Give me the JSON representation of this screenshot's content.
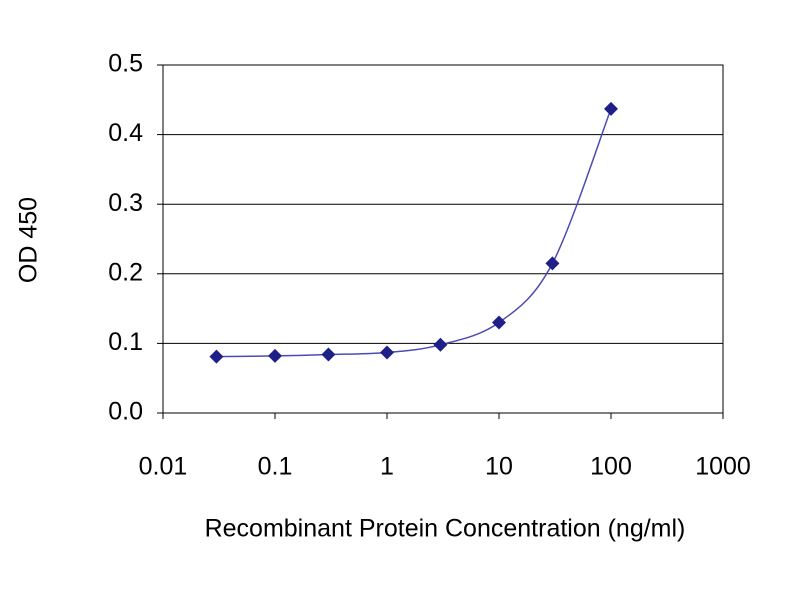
{
  "chart_data": {
    "type": "scatter",
    "x_label": "Recombinant Protein Concentration (ng/ml)",
    "y_label": "OD 450",
    "x_scale": "log",
    "series": [
      {
        "color": "#1f1f8a",
        "x": [
          0.03,
          0.1,
          0.3,
          1,
          3,
          10,
          30,
          100
        ],
        "values": [
          0.081,
          0.082,
          0.084,
          0.087,
          0.098,
          0.13,
          0.215,
          0.437
        ]
      }
    ],
    "xlim": [
      0.01,
      1000
    ],
    "xticks": [
      0.01,
      0.1,
      1,
      10,
      100,
      1000
    ],
    "ylim": [
      0,
      0.5
    ],
    "yticks": [
      {
        "value": 0,
        "label": "0.0"
      },
      0.1,
      0.2,
      0.3,
      0.4,
      0.5
    ],
    "grid": true
  }
}
